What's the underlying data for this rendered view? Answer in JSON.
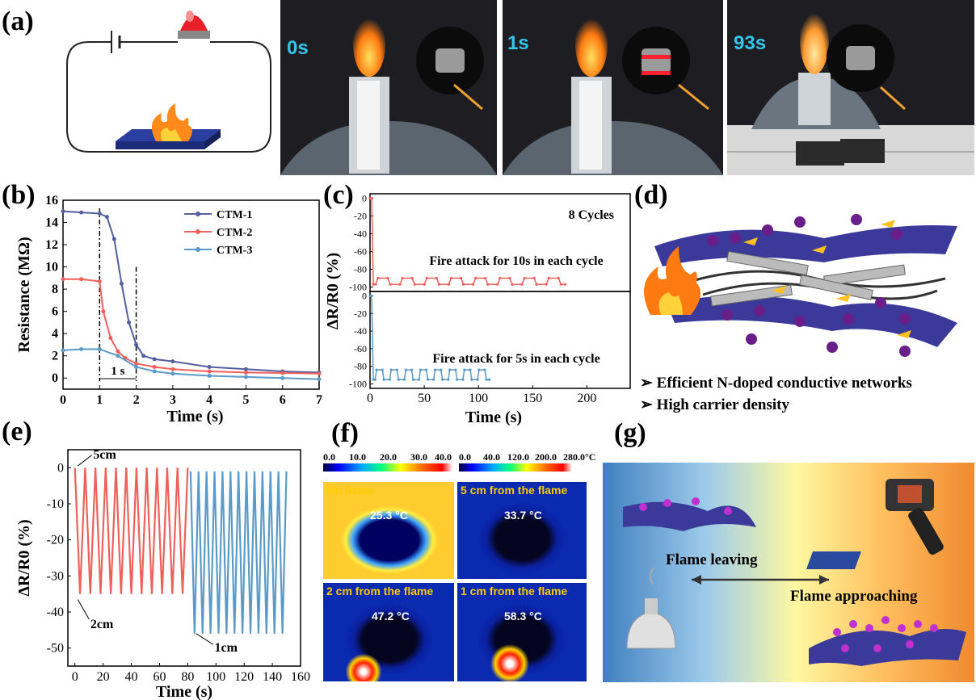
{
  "panels": {
    "a": "(a)",
    "b": "(b)",
    "c": "(c)",
    "d": "(d)",
    "e": "(e)",
    "f": "(f)",
    "g": "(g)"
  },
  "panel_a": {
    "times": [
      "0s",
      "1s",
      "93s"
    ]
  },
  "panel_d": {
    "bullets": [
      "Efficient N-doped conductive networks",
      "High carrier density"
    ]
  },
  "panel_f": {
    "scale1": [
      "0.0",
      "10.0",
      "20.0",
      "30.0",
      "40.0"
    ],
    "scale2": [
      "0.0",
      "40.0",
      "120.0",
      "200.0",
      "280.0°C"
    ],
    "tiles": [
      {
        "title": "No flame",
        "temp": "25.3 °C"
      },
      {
        "title": "5 cm from the flame",
        "temp": "33.7 °C"
      },
      {
        "title": "2 cm from the flame",
        "temp": "47.2 °C"
      },
      {
        "title": "1 cm from the flame",
        "temp": "58.3 °C"
      }
    ]
  },
  "panel_g": {
    "leaving": "Flame leaving",
    "approaching": "Flame approaching"
  },
  "chart_data": [
    {
      "id": "b",
      "type": "line",
      "xlabel": "Time (s)",
      "ylabel": "Resistance (MΩ)",
      "xlim": [
        0,
        7
      ],
      "ylim": [
        -1,
        16
      ],
      "xticks": [
        0,
        1,
        2,
        3,
        4,
        5,
        6,
        7
      ],
      "yticks": [
        0,
        2,
        4,
        6,
        8,
        10,
        12,
        14,
        16
      ],
      "annotation": "1 s",
      "legend_position": "top-right",
      "series": [
        {
          "name": "CTM-1",
          "color": "#555fa0",
          "x": [
            0,
            0.5,
            1.0,
            1.2,
            1.4,
            1.6,
            1.8,
            2.0,
            2.2,
            2.5,
            3.0,
            4.0,
            5.0,
            6.0,
            7.0
          ],
          "y": [
            15.0,
            14.9,
            14.8,
            14.5,
            12.5,
            8.5,
            5.0,
            3.0,
            2.0,
            1.7,
            1.5,
            1.0,
            0.8,
            0.6,
            0.5
          ]
        },
        {
          "name": "CTM-2",
          "color": "#f0605a",
          "x": [
            0,
            0.5,
            1.0,
            1.1,
            1.3,
            1.5,
            1.7,
            2.0,
            2.5,
            3.0,
            4.0,
            5.0,
            6.0,
            7.0
          ],
          "y": [
            8.9,
            8.9,
            8.7,
            6.0,
            3.6,
            2.4,
            1.8,
            1.3,
            1.0,
            0.8,
            0.6,
            0.5,
            0.45,
            0.4
          ]
        },
        {
          "name": "CTM-3",
          "color": "#5a9ac8",
          "x": [
            0,
            0.5,
            1.0,
            1.5,
            2.0,
            2.5,
            3.0,
            4.0,
            5.0,
            6.0,
            7.0
          ],
          "y": [
            2.5,
            2.6,
            2.6,
            2.0,
            1.0,
            0.6,
            0.4,
            0.2,
            0.1,
            0.0,
            -0.1
          ]
        }
      ]
    },
    {
      "id": "c",
      "type": "line",
      "xlabel": "Time (s)",
      "ylabel": "ΔR/R0 (%)",
      "xlim": [
        0,
        240
      ],
      "xticks": [
        0,
        50,
        100,
        150,
        200
      ],
      "subplots": [
        {
          "ylim": [
            -105,
            5
          ],
          "yticks": [
            0,
            -20,
            -40,
            -60,
            -80,
            -100
          ],
          "label": "8 Cycles",
          "annotation": "Fire attack for 10s in each cycle",
          "cycles": 8,
          "period": 22.5,
          "high": -90,
          "low": -97,
          "color": "#f0605a",
          "x_end": 180
        },
        {
          "ylim": [
            -105,
            5
          ],
          "yticks": [
            0,
            -20,
            -40,
            -60,
            -80,
            -100
          ],
          "annotation": "Fire attack for 5s in each cycle",
          "cycles": 8,
          "period": 13.5,
          "high": -84,
          "low": -95,
          "color": "#5a9ac8",
          "x_end": 110
        }
      ]
    },
    {
      "id": "e",
      "type": "line",
      "xlabel": "Time (s)",
      "ylabel": "ΔR/R0 (%)",
      "xlim": [
        -5,
        160
      ],
      "ylim": [
        -55,
        5
      ],
      "xticks": [
        0,
        20,
        40,
        60,
        80,
        100,
        120,
        140,
        160
      ],
      "yticks": [
        0,
        -10,
        -20,
        -30,
        -40,
        -50
      ],
      "annotations": [
        "5cm",
        "2cm",
        "1cm"
      ],
      "series": [
        {
          "name": "2cm",
          "color": "#f0605a",
          "x_range": [
            0,
            80
          ],
          "cycles": 11,
          "high": 0,
          "low": -35
        },
        {
          "name": "1cm",
          "color": "#5a9ac8",
          "x_range": [
            82,
            150
          ],
          "cycles": 12,
          "high": -1,
          "low": -46
        }
      ]
    }
  ]
}
